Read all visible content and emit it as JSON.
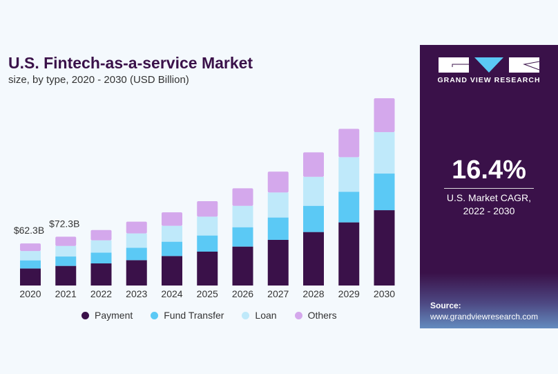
{
  "title": "U.S. Fintech-as-a-service Market",
  "subtitle": "size, by type, 2020 - 2030 (USD Billion)",
  "chart_data": {
    "type": "bar",
    "stacked": true,
    "categories": [
      "2020",
      "2021",
      "2022",
      "2023",
      "2024",
      "2025",
      "2026",
      "2027",
      "2028",
      "2029",
      "2030"
    ],
    "series": [
      {
        "name": "Payment",
        "color": "#3a1149",
        "values": [
          25.2,
          29.0,
          32.7,
          37.5,
          43.6,
          50.1,
          57.6,
          67.5,
          79.1,
          93.4,
          111.4
        ]
      },
      {
        "name": "Fund Transfer",
        "color": "#5bc9f5",
        "values": [
          12.0,
          13.9,
          16.0,
          18.4,
          21.2,
          23.9,
          28.6,
          33.1,
          38.8,
          45.3,
          54.2
        ]
      },
      {
        "name": "Loan",
        "color": "#bfe9fa",
        "values": [
          13.8,
          15.7,
          18.1,
          21.2,
          23.5,
          27.9,
          31.7,
          37.1,
          42.9,
          51.1,
          61.3
        ]
      },
      {
        "name": "Others",
        "color": "#d4a8ec",
        "values": [
          11.3,
          13.6,
          15.3,
          17.4,
          20.0,
          22.8,
          25.9,
          30.7,
          36.1,
          41.9,
          50.1
        ]
      }
    ],
    "data_labels": [
      {
        "category": "2020",
        "text": "$62.3B"
      },
      {
        "category": "2021",
        "text": "$72.3B"
      }
    ],
    "ylim": [
      0,
      280
    ],
    "grid": false,
    "legend": "bottom"
  },
  "panel": {
    "brand": "GRAND VIEW RESEARCH",
    "cagr": "16.4%",
    "cagr_label_1": "U.S. Market CAGR,",
    "cagr_label_2": "2022 - 2030",
    "source_label": "Source:",
    "source_url": "www.grandviewresearch.com",
    "accent": "#5bc9f5"
  }
}
